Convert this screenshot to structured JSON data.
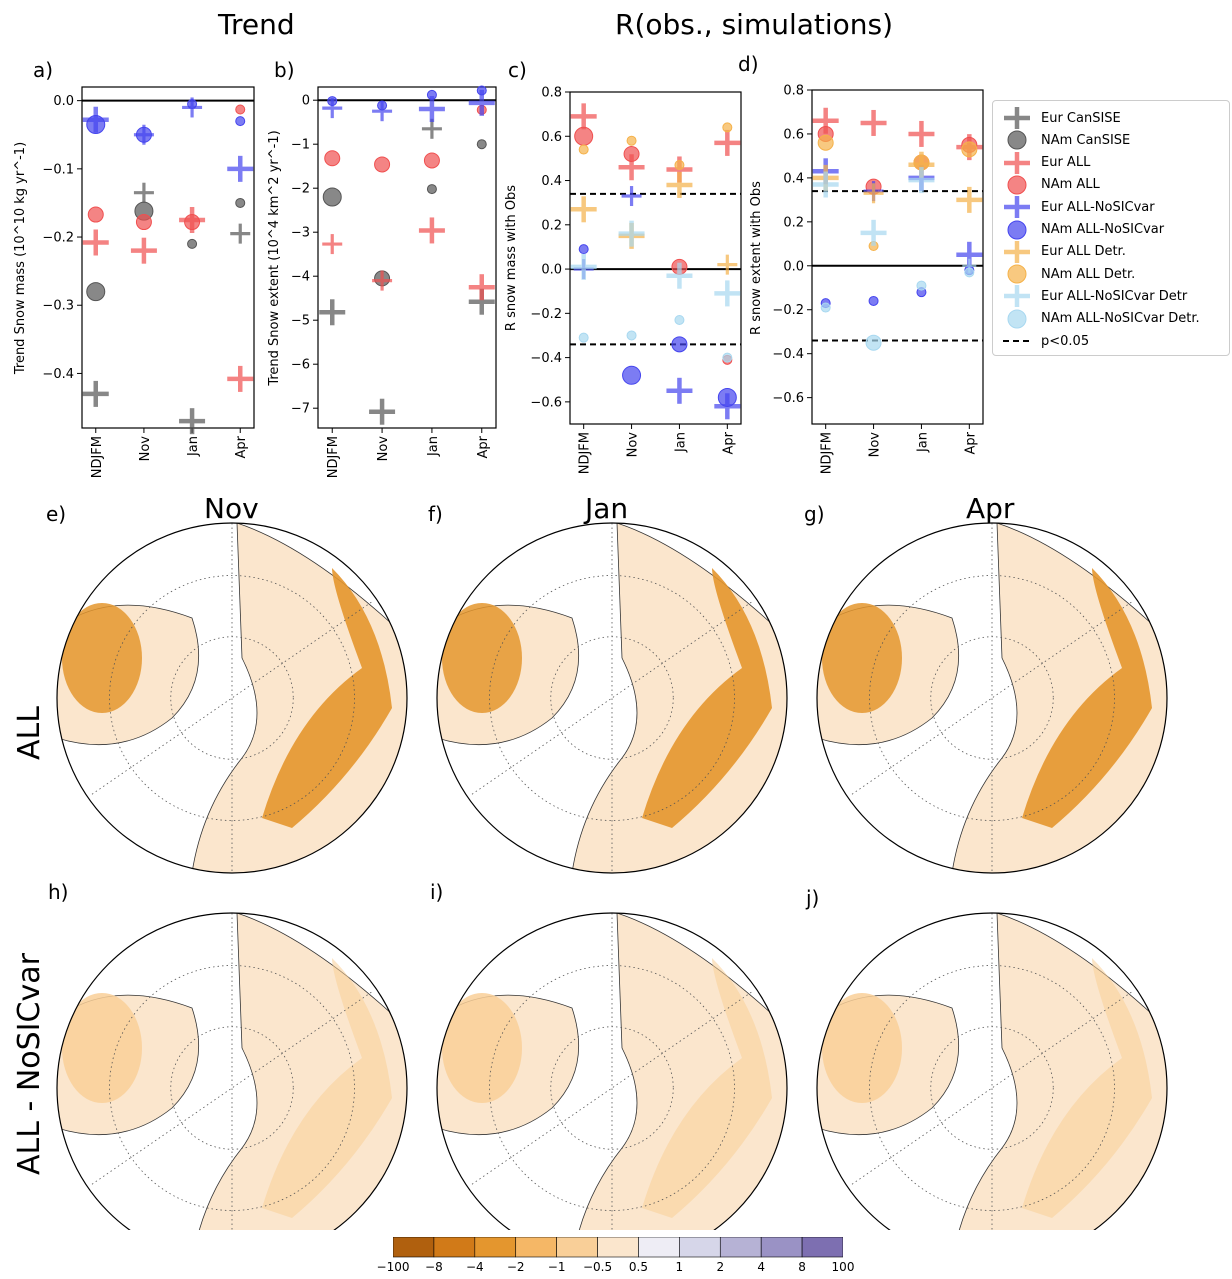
{
  "headers": {
    "trend": "Trend",
    "corr": "R(obs., simulations)"
  },
  "months": [
    "Nov",
    "Jan",
    "Apr"
  ],
  "rows": [
    "ALL",
    "ALL - NoSICvar"
  ],
  "panel_letters": [
    "a)",
    "b)",
    "c)",
    "d)",
    "e)",
    "f)",
    "g)",
    "h)",
    "i)",
    "j)"
  ],
  "colors": {
    "Eur CanSISE": "#555555",
    "NAm CanSISE": "#555555",
    "Eur ALL": "#f05050",
    "NAm ALL": "#f05050",
    "Eur ALL-NoSICvar": "#4545ee",
    "NAm ALL-NoSICvar": "#4545ee",
    "Eur ALL Detr.": "#f5b24a",
    "NAm ALL Detr.": "#f5b24a",
    "Eur ALL-NoSICvar Detr": "#a8d8f0",
    "NAm ALL-NoSICvar Detr.": "#a8d8f0"
  },
  "legend": [
    {
      "label": "Eur CanSISE",
      "marker": "plus"
    },
    {
      "label": "NAm CanSISE",
      "marker": "circle"
    },
    {
      "label": "Eur ALL",
      "marker": "plus"
    },
    {
      "label": "NAm ALL",
      "marker": "circle"
    },
    {
      "label": "Eur ALL-NoSICvar",
      "marker": "plus"
    },
    {
      "label": "NAm ALL-NoSICvar",
      "marker": "circle"
    },
    {
      "label": "Eur ALL Detr.",
      "marker": "plus"
    },
    {
      "label": "NAm ALL Detr.",
      "marker": "circle"
    },
    {
      "label": "Eur ALL-NoSICvar Detr",
      "marker": "plus"
    },
    {
      "label": "NAm ALL-NoSICvar Detr.",
      "marker": "circle"
    },
    {
      "label": "p<0.05",
      "marker": "dash"
    }
  ],
  "chart_data": [
    {
      "id": "a",
      "type": "scatter",
      "categories": [
        "NDJFM",
        "Nov",
        "Jan",
        "Apr"
      ],
      "ylabel": "Trend Snow mass (10^10 kg yr^-1)",
      "ylim": [
        -0.48,
        0.02
      ],
      "yticks": [
        0.0,
        -0.1,
        -0.2,
        -0.3,
        -0.4
      ],
      "ytick_labels": [
        "0.0",
        "−0.1",
        "−0.2",
        "−0.3",
        "−0.4"
      ],
      "zero_line": true,
      "series": [
        {
          "name": "Eur CanSISE",
          "marker": "plus",
          "points": [
            {
              "c": 0,
              "y": -0.43,
              "s": "L"
            },
            {
              "c": 1,
              "y": -0.135,
              "s": "M"
            },
            {
              "c": 2,
              "y": -0.47,
              "s": "L"
            },
            {
              "c": 3,
              "y": -0.195,
              "s": "M"
            }
          ]
        },
        {
          "name": "NAm CanSISE",
          "marker": "circle",
          "points": [
            {
              "c": 0,
              "y": -0.28,
              "s": "L"
            },
            {
              "c": 1,
              "y": -0.162,
              "s": "L"
            },
            {
              "c": 2,
              "y": -0.21,
              "s": "S"
            },
            {
              "c": 3,
              "y": -0.15,
              "s": "S"
            }
          ]
        },
        {
          "name": "Eur ALL",
          "marker": "plus",
          "points": [
            {
              "c": 0,
              "y": -0.208,
              "s": "L"
            },
            {
              "c": 1,
              "y": -0.22,
              "s": "L"
            },
            {
              "c": 2,
              "y": -0.175,
              "s": "L"
            },
            {
              "c": 3,
              "y": -0.408,
              "s": "L"
            }
          ]
        },
        {
          "name": "NAm ALL",
          "marker": "circle",
          "points": [
            {
              "c": 0,
              "y": -0.167,
              "s": "M"
            },
            {
              "c": 1,
              "y": -0.178,
              "s": "M"
            },
            {
              "c": 2,
              "y": -0.178,
              "s": "M"
            },
            {
              "c": 3,
              "y": -0.013,
              "s": "S"
            }
          ]
        },
        {
          "name": "Eur ALL-NoSICvar",
          "marker": "plus",
          "points": [
            {
              "c": 0,
              "y": -0.028,
              "s": "L"
            },
            {
              "c": 1,
              "y": -0.05,
              "s": "M"
            },
            {
              "c": 2,
              "y": -0.01,
              "s": "M"
            },
            {
              "c": 3,
              "y": -0.1,
              "s": "L"
            }
          ]
        },
        {
          "name": "NAm ALL-NoSICvar",
          "marker": "circle",
          "points": [
            {
              "c": 0,
              "y": -0.035,
              "s": "L"
            },
            {
              "c": 1,
              "y": -0.05,
              "s": "M"
            },
            {
              "c": 2,
              "y": -0.005,
              "s": "S"
            },
            {
              "c": 3,
              "y": -0.03,
              "s": "S"
            }
          ]
        }
      ]
    },
    {
      "id": "b",
      "type": "scatter",
      "categories": [
        "NDJFM",
        "Nov",
        "Jan",
        "Apr"
      ],
      "ylabel": "Trend Snow extent (10^4 km^2 yr^-1)",
      "ylim": [
        -7.45,
        0.3
      ],
      "yticks": [
        0,
        -1,
        -2,
        -3,
        -4,
        -5,
        -6,
        -7
      ],
      "ytick_labels": [
        "0",
        "−1",
        "−2",
        "−3",
        "−4",
        "−5",
        "−6",
        "−7"
      ],
      "zero_line": true,
      "series": [
        {
          "name": "Eur CanSISE",
          "marker": "plus",
          "points": [
            {
              "c": 0,
              "y": -4.82,
              "s": "L"
            },
            {
              "c": 1,
              "y": -7.08,
              "s": "L"
            },
            {
              "c": 2,
              "y": -0.65,
              "s": "M"
            },
            {
              "c": 3,
              "y": -4.58,
              "s": "L"
            }
          ]
        },
        {
          "name": "NAm CanSISE",
          "marker": "circle",
          "points": [
            {
              "c": 0,
              "y": -2.2,
              "s": "L"
            },
            {
              "c": 1,
              "y": -4.05,
              "s": "M"
            },
            {
              "c": 2,
              "y": -2.02,
              "s": "S"
            },
            {
              "c": 3,
              "y": -1.0,
              "s": "S"
            }
          ]
        },
        {
          "name": "Eur ALL",
          "marker": "plus",
          "points": [
            {
              "c": 0,
              "y": -3.27,
              "s": "M"
            },
            {
              "c": 1,
              "y": -4.1,
              "s": "M"
            },
            {
              "c": 2,
              "y": -2.96,
              "s": "L"
            },
            {
              "c": 3,
              "y": -4.25,
              "s": "L"
            }
          ]
        },
        {
          "name": "NAm ALL",
          "marker": "circle",
          "points": [
            {
              "c": 0,
              "y": -1.32,
              "s": "M"
            },
            {
              "c": 1,
              "y": -1.46,
              "s": "M"
            },
            {
              "c": 2,
              "y": -1.37,
              "s": "M"
            },
            {
              "c": 3,
              "y": -0.22,
              "s": "S"
            }
          ]
        },
        {
          "name": "Eur ALL-NoSICvar",
          "marker": "plus",
          "points": [
            {
              "c": 0,
              "y": -0.18,
              "s": "M"
            },
            {
              "c": 1,
              "y": -0.25,
              "s": "M"
            },
            {
              "c": 2,
              "y": -0.2,
              "s": "L"
            },
            {
              "c": 3,
              "y": -0.06,
              "s": "L"
            }
          ]
        },
        {
          "name": "NAm ALL-NoSICvar",
          "marker": "circle",
          "points": [
            {
              "c": 0,
              "y": -0.02,
              "s": "S"
            },
            {
              "c": 1,
              "y": -0.12,
              "s": "S"
            },
            {
              "c": 2,
              "y": 0.12,
              "s": "S"
            },
            {
              "c": 3,
              "y": 0.22,
              "s": "S"
            }
          ]
        }
      ]
    },
    {
      "id": "c",
      "type": "scatter",
      "categories": [
        "NDJFM",
        "Nov",
        "Jan",
        "Apr"
      ],
      "ylabel": "R snow mass with Obs",
      "ylim": [
        -0.7,
        0.8
      ],
      "yticks": [
        0.8,
        0.6,
        0.4,
        0.2,
        0.0,
        -0.2,
        -0.4,
        -0.6
      ],
      "ytick_labels": [
        "0.8",
        "0.6",
        "0.4",
        "0.2",
        "0.0",
        "−0.2",
        "−0.4",
        "−0.6"
      ],
      "zero_line": true,
      "significance": [
        0.34,
        -0.34
      ],
      "series": [
        {
          "name": "Eur ALL",
          "marker": "plus",
          "points": [
            {
              "c": 0,
              "y": 0.69,
              "s": "L"
            },
            {
              "c": 1,
              "y": 0.46,
              "s": "L"
            },
            {
              "c": 2,
              "y": 0.45,
              "s": "L"
            },
            {
              "c": 3,
              "y": 0.57,
              "s": "L"
            }
          ]
        },
        {
          "name": "NAm ALL",
          "marker": "circle",
          "points": [
            {
              "c": 0,
              "y": 0.6,
              "s": "L"
            },
            {
              "c": 1,
              "y": 0.52,
              "s": "M"
            },
            {
              "c": 2,
              "y": 0.01,
              "s": "M"
            },
            {
              "c": 3,
              "y": -0.41,
              "s": "S"
            }
          ]
        },
        {
          "name": "Eur ALL-NoSICvar",
          "marker": "plus",
          "points": [
            {
              "c": 0,
              "y": 0.0,
              "s": "M"
            },
            {
              "c": 1,
              "y": 0.33,
              "s": "M"
            },
            {
              "c": 2,
              "y": -0.55,
              "s": "L"
            },
            {
              "c": 3,
              "y": -0.62,
              "s": "L"
            }
          ]
        },
        {
          "name": "NAm ALL-NoSICvar",
          "marker": "circle",
          "points": [
            {
              "c": 0,
              "y": 0.09,
              "s": "S"
            },
            {
              "c": 1,
              "y": -0.48,
              "s": "L"
            },
            {
              "c": 2,
              "y": -0.34,
              "s": "M"
            },
            {
              "c": 3,
              "y": -0.58,
              "s": "L"
            }
          ]
        },
        {
          "name": "Eur ALL Detr.",
          "marker": "plus",
          "points": [
            {
              "c": 0,
              "y": 0.27,
              "s": "L"
            },
            {
              "c": 1,
              "y": 0.15,
              "s": "L"
            },
            {
              "c": 2,
              "y": 0.38,
              "s": "L"
            },
            {
              "c": 3,
              "y": 0.02,
              "s": "M"
            }
          ]
        },
        {
          "name": "NAm ALL Detr.",
          "marker": "circle",
          "points": [
            {
              "c": 0,
              "y": 0.54,
              "s": "S"
            },
            {
              "c": 1,
              "y": 0.58,
              "s": "S"
            },
            {
              "c": 2,
              "y": 0.47,
              "s": "S"
            },
            {
              "c": 3,
              "y": 0.64,
              "s": "S"
            }
          ]
        },
        {
          "name": "Eur ALL-NoSICvar Detr",
          "marker": "plus",
          "points": [
            {
              "c": 0,
              "y": 0.01,
              "s": "L"
            },
            {
              "c": 1,
              "y": 0.16,
              "s": "L"
            },
            {
              "c": 2,
              "y": -0.03,
              "s": "L"
            },
            {
              "c": 3,
              "y": -0.11,
              "s": "L"
            }
          ]
        },
        {
          "name": "NAm ALL-NoSICvar Detr.",
          "marker": "circle",
          "points": [
            {
              "c": 0,
              "y": -0.31,
              "s": "S"
            },
            {
              "c": 1,
              "y": -0.3,
              "s": "S"
            },
            {
              "c": 2,
              "y": -0.23,
              "s": "S"
            },
            {
              "c": 3,
              "y": -0.4,
              "s": "S"
            }
          ]
        }
      ]
    },
    {
      "id": "d",
      "type": "scatter",
      "categories": [
        "NDJFM",
        "Nov",
        "Jan",
        "Apr"
      ],
      "ylabel": "R snow extent with Obs",
      "ylim": [
        -0.72,
        0.8
      ],
      "yticks": [
        0.8,
        0.6,
        0.4,
        0.2,
        0.0,
        -0.2,
        -0.4,
        -0.6
      ],
      "ytick_labels": [
        "0.8",
        "0.6",
        "0.4",
        "0.2",
        "0.0",
        "−0.2",
        "−0.4",
        "−0.6"
      ],
      "zero_line": true,
      "significance": [
        0.34,
        -0.34
      ],
      "series": [
        {
          "name": "Eur ALL",
          "marker": "plus",
          "points": [
            {
              "c": 0,
              "y": 0.66,
              "s": "L"
            },
            {
              "c": 1,
              "y": 0.65,
              "s": "L"
            },
            {
              "c": 2,
              "y": 0.6,
              "s": "L"
            },
            {
              "c": 3,
              "y": 0.54,
              "s": "L"
            }
          ]
        },
        {
          "name": "NAm ALL",
          "marker": "circle",
          "points": [
            {
              "c": 0,
              "y": 0.6,
              "s": "M"
            },
            {
              "c": 1,
              "y": 0.36,
              "s": "M"
            },
            {
              "c": 2,
              "y": 0.47,
              "s": "M"
            },
            {
              "c": 3,
              "y": 0.55,
              "s": "M"
            }
          ]
        },
        {
          "name": "Eur ALL-NoSICvar",
          "marker": "plus",
          "points": [
            {
              "c": 0,
              "y": 0.43,
              "s": "L"
            },
            {
              "c": 1,
              "y": 0.34,
              "s": "M"
            },
            {
              "c": 2,
              "y": 0.4,
              "s": "L"
            },
            {
              "c": 3,
              "y": 0.05,
              "s": "L"
            }
          ]
        },
        {
          "name": "NAm ALL-NoSICvar",
          "marker": "circle",
          "points": [
            {
              "c": 0,
              "y": -0.17,
              "s": "S"
            },
            {
              "c": 1,
              "y": -0.16,
              "s": "S"
            },
            {
              "c": 2,
              "y": -0.12,
              "s": "S"
            },
            {
              "c": 3,
              "y": -0.02,
              "s": "S"
            }
          ]
        },
        {
          "name": "Eur ALL Detr.",
          "marker": "plus",
          "points": [
            {
              "c": 0,
              "y": 0.4,
              "s": "L"
            },
            {
              "c": 1,
              "y": 0.33,
              "s": "M"
            },
            {
              "c": 2,
              "y": 0.46,
              "s": "L"
            },
            {
              "c": 3,
              "y": 0.3,
              "s": "L"
            }
          ]
        },
        {
          "name": "NAm ALL Detr.",
          "marker": "circle",
          "points": [
            {
              "c": 0,
              "y": 0.56,
              "s": "M"
            },
            {
              "c": 1,
              "y": 0.09,
              "s": "S"
            },
            {
              "c": 2,
              "y": 0.47,
              "s": "M"
            },
            {
              "c": 3,
              "y": 0.53,
              "s": "M"
            }
          ]
        },
        {
          "name": "Eur ALL-NoSICvar Detr",
          "marker": "plus",
          "points": [
            {
              "c": 0,
              "y": 0.37,
              "s": "L"
            },
            {
              "c": 1,
              "y": 0.15,
              "s": "L"
            },
            {
              "c": 2,
              "y": 0.39,
              "s": "L"
            },
            {
              "c": 3,
              "y": 0.0,
              "s": "S"
            }
          ]
        },
        {
          "name": "NAm ALL-NoSICvar Detr.",
          "marker": "circle",
          "points": [
            {
              "c": 0,
              "y": -0.19,
              "s": "S"
            },
            {
              "c": 1,
              "y": -0.35,
              "s": "M"
            },
            {
              "c": 2,
              "y": -0.09,
              "s": "S"
            },
            {
              "c": 3,
              "y": -0.03,
              "s": "S"
            }
          ]
        }
      ]
    },
    {
      "id": "colorbar",
      "type": "heatmap",
      "tick_labels": [
        "−100",
        "−8",
        "−4",
        "−2",
        "−1",
        "−0.5",
        "0.5",
        "1",
        "2",
        "4",
        "8",
        "100"
      ],
      "colors": [
        "#b0600e",
        "#d17a18",
        "#e4962e",
        "#f5b766",
        "#f9cf98",
        "#fbe6cd",
        "#eeedf5",
        "#d6d6e9",
        "#b6b2d5",
        "#9a92c5",
        "#7d6fb1"
      ]
    }
  ]
}
